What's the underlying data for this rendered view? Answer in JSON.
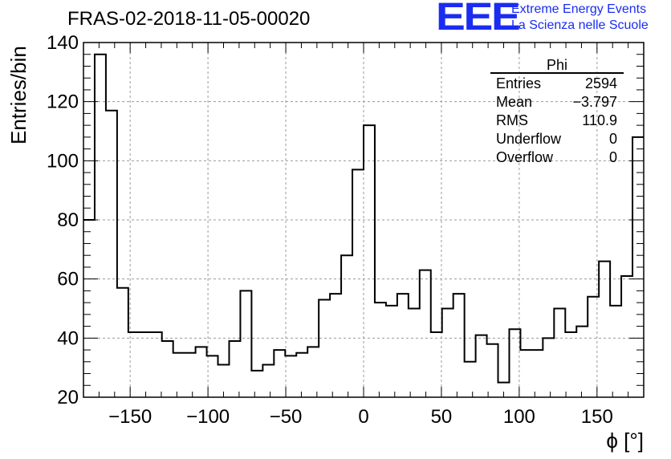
{
  "header": {
    "title": "FRAS-02-2018-11-05-00020"
  },
  "logo": {
    "mark": "EEE",
    "line1": "Extreme Energy Events",
    "line2": "La Scienza nelle Scuole",
    "color": "#1a2cf2"
  },
  "stats": {
    "name": "Phi",
    "rows": [
      {
        "label": "Entries",
        "value": "2594"
      },
      {
        "label": "Mean",
        "value": "−3.797"
      },
      {
        "label": "RMS",
        "value": "110.9"
      },
      {
        "label": "Underflow",
        "value": "0"
      },
      {
        "label": "Overflow",
        "value": "0"
      }
    ]
  },
  "chart_data": {
    "type": "bar",
    "histogram": true,
    "xlabel": "ϕ [°]",
    "ylabel": "Entries/bin",
    "xlim": [
      -180,
      180
    ],
    "ylim": [
      20,
      140
    ],
    "bin_width": 7.2,
    "xticks": [
      -150,
      -100,
      -50,
      0,
      50,
      100,
      150
    ],
    "xtick_labels": [
      "−150",
      "−100",
      "−50",
      "0",
      "50",
      "100",
      "150"
    ],
    "yticks": [
      20,
      40,
      60,
      80,
      100,
      120,
      140
    ],
    "grid": true,
    "line_color": "#000000",
    "values": [
      80,
      136,
      117,
      57,
      42,
      42,
      42,
      39,
      35,
      35,
      37,
      34,
      31,
      39,
      56,
      29,
      31,
      36,
      34,
      35,
      37,
      53,
      55,
      68,
      97,
      112,
      52,
      51,
      55,
      50,
      63,
      42,
      50,
      55,
      32,
      41,
      38,
      25,
      43,
      36,
      36,
      40,
      50,
      42,
      44,
      54,
      66,
      51,
      61,
      108
    ]
  }
}
